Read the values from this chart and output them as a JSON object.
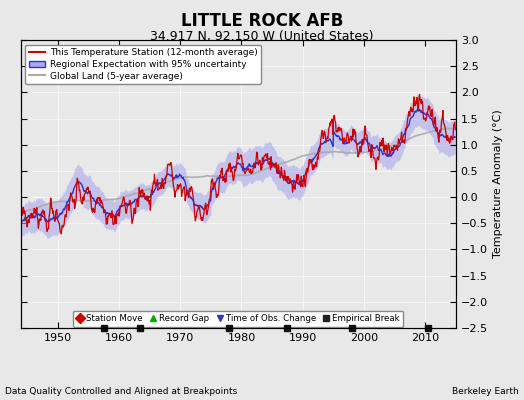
{
  "title": "LITTLE ROCK AFB",
  "subtitle": "34.917 N, 92.150 W (United States)",
  "ylabel": "Temperature Anomaly (°C)",
  "xlabel_left": "Data Quality Controlled and Aligned at Breakpoints",
  "xlabel_right": "Berkeley Earth",
  "ylim": [
    -2.5,
    3.0
  ],
  "xlim": [
    1944,
    2015
  ],
  "xticks": [
    1950,
    1960,
    1970,
    1980,
    1990,
    2000,
    2010
  ],
  "yticks": [
    -2.5,
    -2,
    -1.5,
    -1,
    -0.5,
    0,
    0.5,
    1,
    1.5,
    2,
    2.5,
    3
  ],
  "bg_color": "#e8e8e8",
  "plot_bg_color": "#e8e8e8",
  "station_color": "#cc0000",
  "regional_color": "#3333cc",
  "regional_shade_color": "#aaaaee",
  "global_color": "#aaaaaa",
  "legend_entries": [
    {
      "label": "This Temperature Station (12-month average)",
      "color": "#cc0000",
      "lw": 1.5
    },
    {
      "label": "Regional Expectation with 95% uncertainty",
      "color": "#3333cc",
      "lw": 1.5
    },
    {
      "label": "Global Land (5-year average)",
      "color": "#aaaaaa",
      "lw": 1.5
    }
  ],
  "marker_entries": [
    {
      "label": "Station Move",
      "marker": "D",
      "color": "#cc0000"
    },
    {
      "label": "Record Gap",
      "marker": "^",
      "color": "#00aa00"
    },
    {
      "label": "Time of Obs. Change",
      "marker": "v",
      "color": "#3333cc"
    },
    {
      "label": "Empirical Break",
      "marker": "s",
      "color": "#222222"
    }
  ],
  "empirical_breaks": [
    1957.5,
    1963.5,
    1978.0,
    1987.5,
    1998.0,
    2010.5
  ],
  "seed": 42
}
